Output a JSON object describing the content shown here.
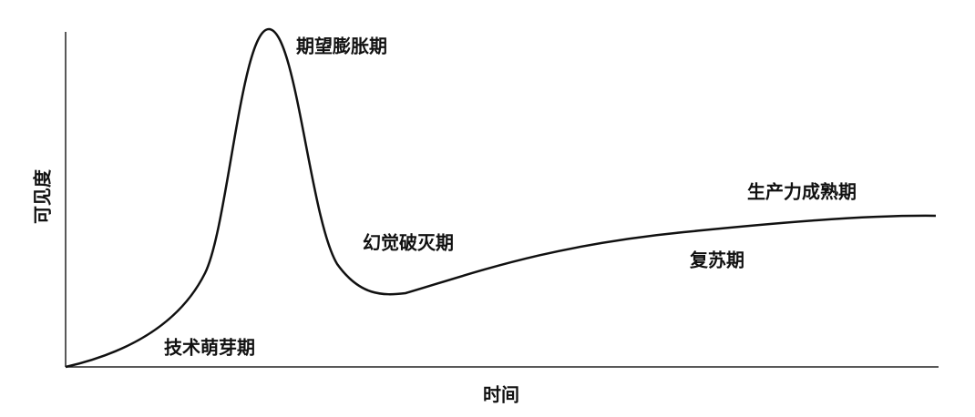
{
  "y_axis_label": "可见度",
  "x_axis_label": "时间",
  "phases": [
    "技术萌芽期",
    "期望膨胀期",
    "幻觉破灭期",
    "复苏期",
    "生产力成熟期"
  ]
}
